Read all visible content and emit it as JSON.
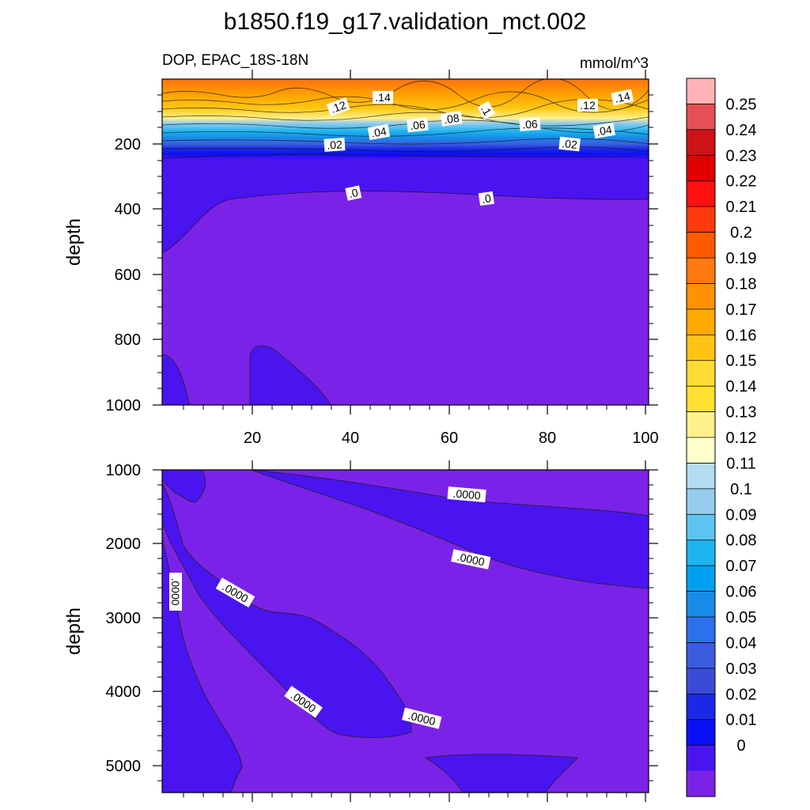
{
  "title": "b1850.f19_g17.validation_mct.002",
  "panel_top": {
    "left_label": "DOP, EPAC_18S-18N",
    "right_label": "mmol/m^3",
    "ylabel": "depth",
    "y_ticks": [
      "200",
      "400",
      "600",
      "800",
      "1000"
    ],
    "x_ticks": [
      "20",
      "40",
      "60",
      "80",
      "100"
    ],
    "contour_labels": [
      ".12",
      ".14",
      ".1",
      ".12",
      ".14",
      ".08",
      ".06",
      ".06",
      ".04",
      ".04",
      ".02",
      ".02",
      ".0",
      ".0"
    ]
  },
  "panel_bottom": {
    "ylabel": "depth",
    "y_ticks": [
      "1000",
      "2000",
      "3000",
      "4000",
      "5000"
    ],
    "contour_labels": [
      ".0000",
      ".0000",
      ".0000",
      ".0000",
      ".0000",
      ".0000"
    ]
  },
  "colorbar": {
    "labels": [
      "0.25",
      "0.24",
      "0.23",
      "0.22",
      "0.21",
      "0.2",
      "0.19",
      "0.18",
      "0.17",
      "0.16",
      "0.15",
      "0.14",
      "0.13",
      "0.12",
      "0.11",
      "0.1",
      "0.09",
      "0.08",
      "0.07",
      "0.06",
      "0.05",
      "0.04",
      "0.03",
      "0.02",
      "0.01",
      "0"
    ],
    "colors": [
      "#FFB3B6",
      "#E65055",
      "#CC1317",
      "#E00000",
      "#FF1010",
      "#FF3A0C",
      "#FF5A00",
      "#FF7A10",
      "#FF9200",
      "#FFAA00",
      "#FFC314",
      "#FFDC32",
      "#FFE132",
      "#FFF08C",
      "#FFFFCD",
      "#B2DDF0",
      "#96CCEE",
      "#5BC4F0",
      "#1CB5F0",
      "#00A0F0",
      "#188CE8",
      "#2C70EC",
      "#3C5CE0",
      "#3B4BD6",
      "#1A28E8",
      "#0A10F5",
      "#4A14F0",
      "#7B22E8"
    ]
  },
  "chart_data": [
    {
      "type": "heatmap",
      "subtype": "filled-contour",
      "variable": "DOP",
      "region": "EPAC_18S-18N",
      "units": "mmol/m^3",
      "xlabel": "",
      "ylabel": "depth",
      "xlim": [
        1,
        100
      ],
      "ylim": [
        1000,
        0
      ],
      "contour_levels": [
        0,
        0.01,
        0.02,
        0.03,
        0.04,
        0.05,
        0.06,
        0.07,
        0.08,
        0.09,
        0.1,
        0.11,
        0.12,
        0.13,
        0.14,
        0.15,
        0.16,
        0.17,
        0.18,
        0.19,
        0.2,
        0.21,
        0.22,
        0.23,
        0.24,
        0.25
      ],
      "depth_profile": [
        {
          "depth": 0,
          "value": 0.15
        },
        {
          "depth": 25,
          "value": 0.155
        },
        {
          "depth": 50,
          "value": 0.15
        },
        {
          "depth": 75,
          "value": 0.12
        },
        {
          "depth": 100,
          "value": 0.1
        },
        {
          "depth": 125,
          "value": 0.07
        },
        {
          "depth": 150,
          "value": 0.045
        },
        {
          "depth": 175,
          "value": 0.025
        },
        {
          "depth": 200,
          "value": 0.012
        },
        {
          "depth": 250,
          "value": 0.005
        },
        {
          "depth": 350,
          "value": 0.002
        },
        {
          "depth": 400,
          "value": 0.0
        },
        {
          "depth": 1000,
          "value": 0.0
        }
      ]
    },
    {
      "type": "heatmap",
      "subtype": "filled-contour",
      "variable": "DOP",
      "units": "mmol/m^3",
      "xlabel": "",
      "ylabel": "depth",
      "xlim": [
        1,
        100
      ],
      "ylim": [
        5350,
        1000
      ],
      "contour_levels": [
        0,
        0.01
      ],
      "value_range": [
        0.0,
        0.0
      ]
    }
  ]
}
